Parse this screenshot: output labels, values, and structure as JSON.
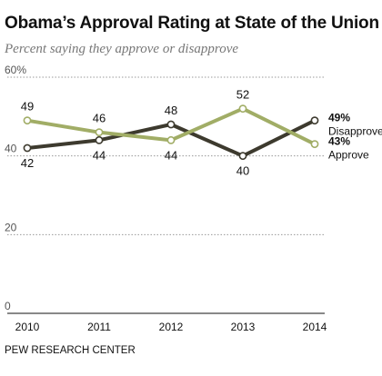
{
  "header": {
    "title": "Obama’s Approval Rating at State of the Union",
    "subtitle": "Percent saying they approve or disapprove"
  },
  "footer": {
    "source": "PEW RESEARCH CENTER"
  },
  "colors": {
    "disapprove": "#3d3a2e",
    "approve": "#a1ad66",
    "grid": "#999999",
    "axis": "#111111",
    "text": "#111111"
  },
  "chart_data": {
    "type": "line",
    "x": [
      "2010",
      "2011",
      "2012",
      "2013",
      "2014"
    ],
    "ylim": [
      0,
      60
    ],
    "yticks": [
      0,
      20,
      40,
      60
    ],
    "ytick_labels": [
      "0",
      "20",
      "40",
      "60%"
    ],
    "grid": true,
    "series": [
      {
        "name": "Disapprove",
        "values": [
          42,
          44,
          48,
          40,
          49
        ],
        "end_label": "49%",
        "color": "#3d3a2e"
      },
      {
        "name": "Approve",
        "values": [
          49,
          46,
          44,
          52,
          43
        ],
        "end_label": "43%",
        "color": "#a1ad66"
      }
    ]
  }
}
